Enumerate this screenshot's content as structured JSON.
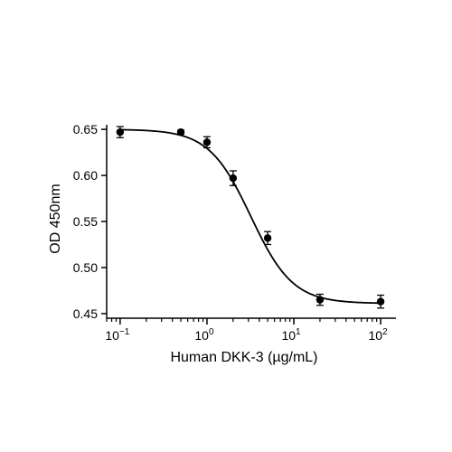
{
  "chart_data": {
    "type": "scatter",
    "title": "",
    "xlabel": "Human DKK-3 (µg/mL)",
    "ylabel": "OD 450nm",
    "x_scale": "log10",
    "xlim": [
      0.07,
      150
    ],
    "ylim": [
      0.445,
      0.655
    ],
    "x_ticks": [
      {
        "value": 0.1,
        "base": "10",
        "exp": "−1"
      },
      {
        "value": 1,
        "base": "10",
        "exp": "0"
      },
      {
        "value": 10,
        "base": "10",
        "exp": "1"
      },
      {
        "value": 100,
        "base": "10",
        "exp": "2"
      }
    ],
    "y_ticks": [
      0.45,
      0.5,
      0.55,
      0.6,
      0.65
    ],
    "y_tick_labels": [
      "0.45",
      "0.50",
      "0.55",
      "0.60",
      "0.65"
    ],
    "grid": false,
    "legend": "none",
    "points": [
      {
        "x": 0.1,
        "y": 0.647,
        "err": 0.006
      },
      {
        "x": 0.5,
        "y": 0.647,
        "err": 0.002
      },
      {
        "x": 1.0,
        "y": 0.636,
        "err": 0.006
      },
      {
        "x": 2.0,
        "y": 0.597,
        "err": 0.008
      },
      {
        "x": 5.0,
        "y": 0.532,
        "err": 0.007
      },
      {
        "x": 20.0,
        "y": 0.465,
        "err": 0.006
      },
      {
        "x": 100.0,
        "y": 0.463,
        "err": 0.007
      }
    ],
    "fit": {
      "model": "4PL",
      "top": 0.65,
      "bottom": 0.461,
      "ec50": 3.2,
      "hill": 1.8
    },
    "colors": {
      "points": "#000000",
      "line": "#000000"
    }
  }
}
